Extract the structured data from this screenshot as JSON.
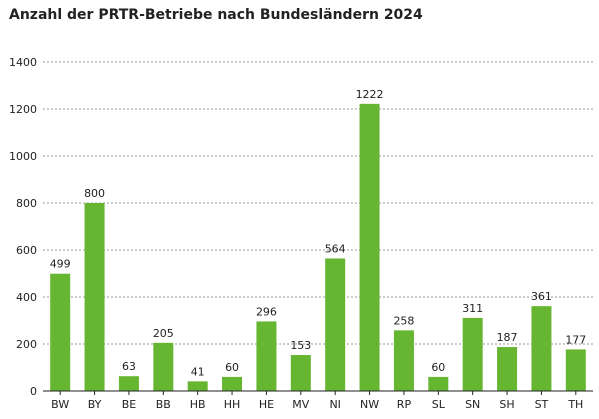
{
  "chart_data": {
    "type": "bar",
    "title": "Anzahl der PRTR-Betriebe nach Bundesländern 2024",
    "xlabel": "",
    "ylabel": "",
    "categories": [
      "BW",
      "BY",
      "BE",
      "BB",
      "HB",
      "HH",
      "HE",
      "MV",
      "NI",
      "NW",
      "RP",
      "SL",
      "SN",
      "SH",
      "ST",
      "TH"
    ],
    "values": [
      499,
      800,
      63,
      205,
      41,
      60,
      296,
      153,
      564,
      1222,
      258,
      60,
      311,
      187,
      361,
      177
    ],
    "data_labels": [
      "499",
      "800",
      "63",
      "205",
      "41",
      "60",
      "296",
      "153",
      "564",
      "1222",
      "258",
      "60",
      "311",
      "187",
      "361",
      "177"
    ],
    "ylim": [
      0,
      1400
    ],
    "yticks": [
      0,
      200,
      400,
      600,
      800,
      1000,
      1200,
      1400
    ],
    "ytick_labels": [
      "0",
      "200",
      "400",
      "600",
      "800",
      "1000",
      "1200",
      "1400"
    ],
    "grid": true,
    "bar_color": "#66b632"
  }
}
